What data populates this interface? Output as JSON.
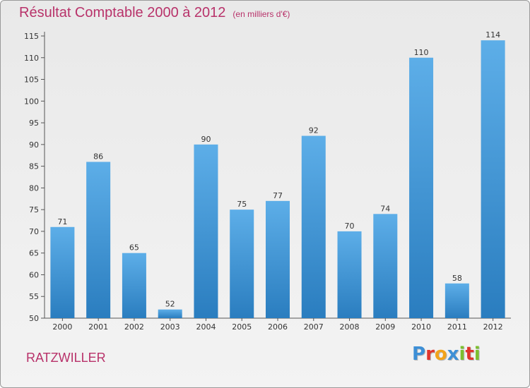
{
  "header": {
    "title": "Résultat Comptable 2000 à 2012",
    "subtitle": "(en milliers d'€)"
  },
  "footer": {
    "location": "RATZWILLER",
    "logo_text": "Proxiti"
  },
  "colors": {
    "accent": "#b8326a",
    "bar_top": "#5daee8",
    "bar_bottom": "#2a7dbf"
  },
  "chart_data": {
    "type": "bar",
    "title": "Résultat Comptable 2000 à 2012",
    "subtitle": "(en milliers d'€)",
    "xlabel": "",
    "ylabel": "",
    "categories": [
      "2000",
      "2001",
      "2002",
      "2003",
      "2004",
      "2005",
      "2006",
      "2007",
      "2008",
      "2009",
      "2010",
      "2011",
      "2012"
    ],
    "values": [
      71,
      86,
      65,
      52,
      90,
      75,
      77,
      92,
      70,
      74,
      110,
      58,
      114
    ],
    "ylim": [
      50,
      115
    ],
    "yticks": [
      50,
      55,
      60,
      65,
      70,
      75,
      80,
      85,
      90,
      95,
      100,
      105,
      110,
      115
    ],
    "grid": false,
    "legend": "none"
  }
}
